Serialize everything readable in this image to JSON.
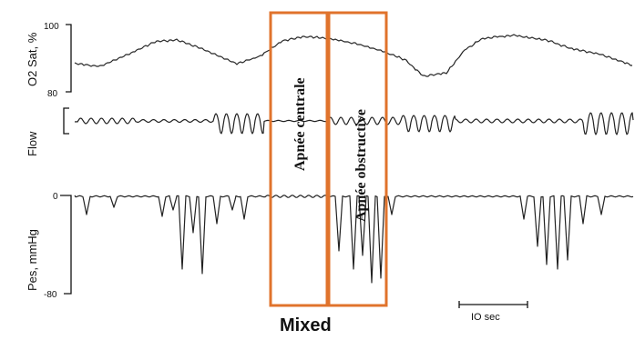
{
  "chart_data": {
    "type": "line",
    "panels": [
      {
        "ylabel": "O2 Sat, %",
        "ticks": [
          "100",
          "80"
        ]
      },
      {
        "ylabel": "Flow",
        "ticks": []
      },
      {
        "ylabel": "Pes, mmHg",
        "ticks": [
          "0",
          "-80"
        ]
      }
    ],
    "annotations": [
      {
        "label": "Apnée centrale"
      },
      {
        "label": "Apnée obstructive"
      }
    ],
    "caption": "Mixed",
    "scale_bar": "IO sec",
    "box_color": "#e0732c"
  }
}
